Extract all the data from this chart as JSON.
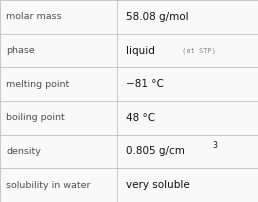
{
  "rows": [
    {
      "label": "molar mass",
      "value": "58.08 g/mol",
      "value_extra": null,
      "superscript": false
    },
    {
      "label": "phase",
      "value": "liquid",
      "value_extra": "(at STP)",
      "superscript": false
    },
    {
      "label": "melting point",
      "value": "−81 °C",
      "value_extra": null,
      "superscript": false
    },
    {
      "label": "boiling point",
      "value": "48 °C",
      "value_extra": null,
      "superscript": false
    },
    {
      "label": "density",
      "value": "0.805 g/cm",
      "value_extra": "3",
      "superscript": true
    },
    {
      "label": "solubility in water",
      "value": "very soluble",
      "value_extra": null,
      "superscript": false
    }
  ],
  "bg_color": "#f9f9f9",
  "border_color": "#c8c8c8",
  "label_color": "#505050",
  "value_color": "#111111",
  "extra_color": "#888888",
  "label_fontsize": 6.8,
  "value_fontsize": 7.5,
  "extra_fontsize": 5.0,
  "col_split": 0.455,
  "fig_width": 2.58,
  "fig_height": 2.02,
  "dpi": 100
}
